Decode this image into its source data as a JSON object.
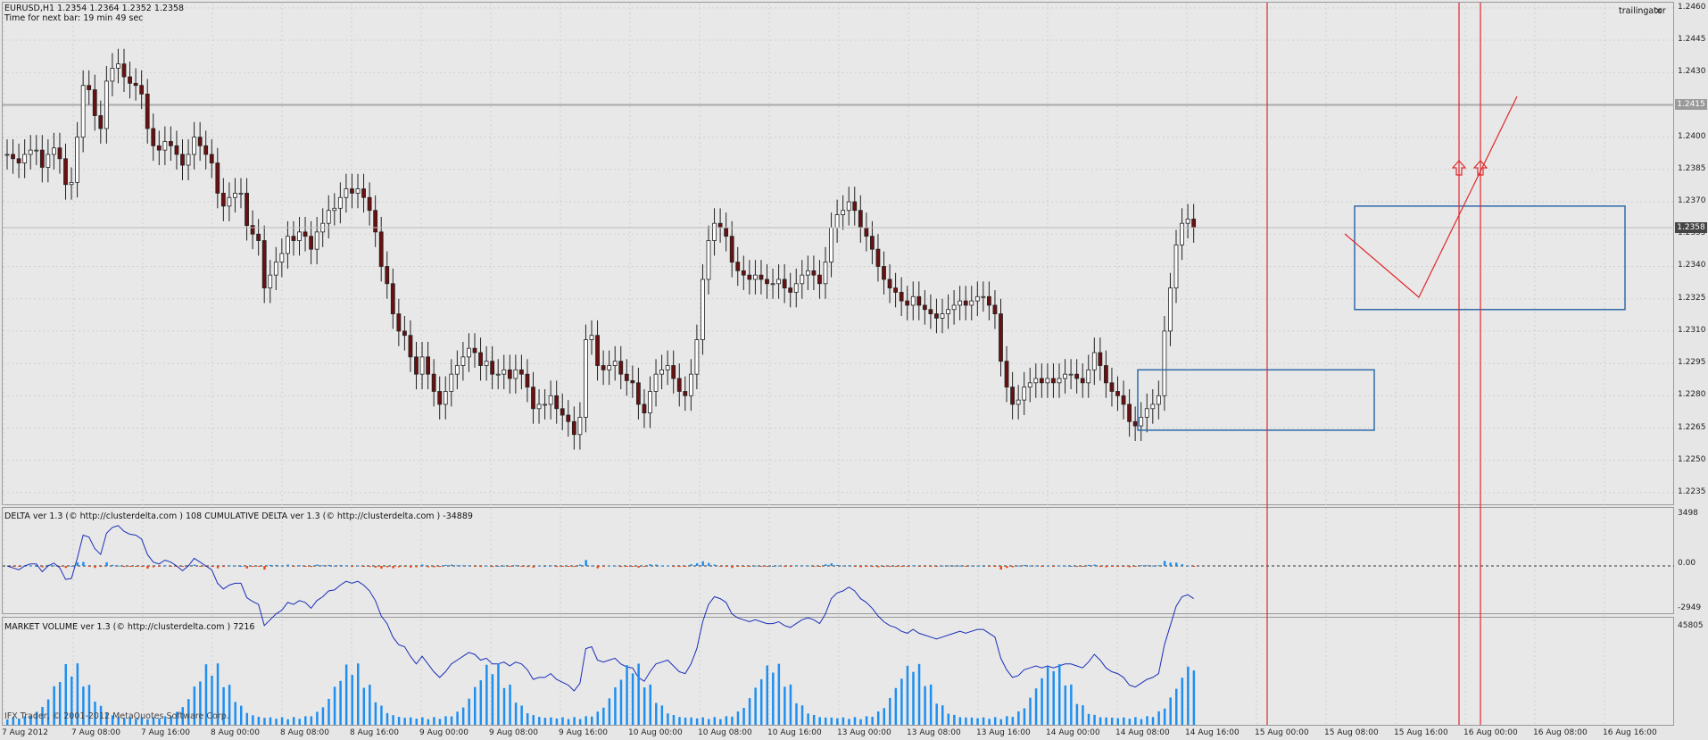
{
  "chart_header": {
    "symbol_line": "EURUSD,H1  1.2354 1.2364 1.2352 1.2358",
    "timer_line": "Time for next bar: 19 min 49 sec"
  },
  "expert": {
    "name": "trailingator",
    "close_glyph": "✕"
  },
  "price_scale": {
    "ticks": [
      "1.2460",
      "1.2445",
      "1.2430",
      "1.2415",
      "1.2400",
      "1.2385",
      "1.2370",
      "1.2355",
      "1.2340",
      "1.2325",
      "1.2310",
      "1.2295",
      "1.2280",
      "1.2265",
      "1.2250",
      "1.2235"
    ],
    "hline_label": "1.2415",
    "last_price_label": "1.2358"
  },
  "delta_panel": {
    "label": "DELTA ver 1.3 (© http://clusterdelta.com ) 108  CUMULATIVE DELTA ver 1.3 (© http://clusterdelta.com ) -34889",
    "scale": [
      "3498",
      "0.00",
      "-2949"
    ]
  },
  "volume_panel": {
    "label": "MARKET VOLUME ver 1.3 (© http://clusterdelta.com ) 7216",
    "scale": [
      "45805"
    ],
    "copyright": "IFX Trader, © 2001-2012 MetaQuotes Software Corp."
  },
  "time_axis": [
    "7 Aug 2012",
    "7 Aug 08:00",
    "7 Aug 16:00",
    "8 Aug 00:00",
    "8 Aug 08:00",
    "8 Aug 16:00",
    "9 Aug 00:00",
    "9 Aug 08:00",
    "9 Aug 16:00",
    "10 Aug 00:00",
    "10 Aug 08:00",
    "10 Aug 16:00",
    "13 Aug 00:00",
    "13 Aug 08:00",
    "13 Aug 16:00",
    "14 Aug 00:00",
    "14 Aug 08:00",
    "14 Aug 16:00",
    "15 Aug 00:00",
    "15 Aug 08:00",
    "15 Aug 16:00",
    "16 Aug 00:00",
    "16 Aug 08:00",
    "16 Aug 16:00"
  ],
  "colors": {
    "bear": "#6b1010",
    "bull": "#ffffff",
    "vline": "#e0282a",
    "box": "#2f6aa8",
    "delta_pos": "#1e8ff0",
    "delta_neg": "#f04a12",
    "cum_delta": "#1a2fb8",
    "volume": "#1e8ff0"
  },
  "chart_data": {
    "type": "candlestick",
    "symbol": "EURUSD",
    "timeframe": "H1",
    "ylim": [
      1.223,
      1.2462
    ],
    "candles_close": [
      1.2392,
      1.239,
      1.2388,
      1.2392,
      1.2394,
      1.2394,
      1.2386,
      1.2392,
      1.2395,
      1.239,
      1.2378,
      1.2379,
      1.24,
      1.2424,
      1.2422,
      1.241,
      1.2404,
      1.2426,
      1.2432,
      1.2434,
      1.2428,
      1.2425,
      1.2424,
      1.242,
      1.2404,
      1.2396,
      1.2394,
      1.2398,
      1.2396,
      1.2392,
      1.2387,
      1.2392,
      1.24,
      1.2396,
      1.2392,
      1.2388,
      1.2374,
      1.2368,
      1.2372,
      1.2374,
      1.2374,
      1.2359,
      1.2355,
      1.2352,
      1.233,
      1.2336,
      1.2342,
      1.2346,
      1.2354,
      1.2352,
      1.2356,
      1.2354,
      1.2348,
      1.2356,
      1.236,
      1.2366,
      1.2367,
      1.2372,
      1.2376,
      1.2374,
      1.2376,
      1.2372,
      1.2366,
      1.2356,
      1.234,
      1.2332,
      1.2318,
      1.231,
      1.2308,
      1.2298,
      1.229,
      1.2298,
      1.229,
      1.2282,
      1.2276,
      1.2282,
      1.229,
      1.2294,
      1.2298,
      1.2302,
      1.23,
      1.2294,
      1.2296,
      1.229,
      1.229,
      1.2292,
      1.2288,
      1.2292,
      1.229,
      1.2284,
      1.2274,
      1.2276,
      1.2276,
      1.228,
      1.2274,
      1.2271,
      1.2268,
      1.2262,
      1.227,
      1.2306,
      1.2308,
      1.2294,
      1.2292,
      1.2294,
      1.2296,
      1.229,
      1.2287,
      1.2286,
      1.2276,
      1.2272,
      1.2282,
      1.229,
      1.2292,
      1.2294,
      1.2288,
      1.2282,
      1.228,
      1.229,
      1.2306,
      1.2334,
      1.2352,
      1.236,
      1.2358,
      1.2354,
      1.2342,
      1.2338,
      1.2336,
      1.2334,
      1.2336,
      1.2334,
      1.2332,
      1.2332,
      1.2334,
      1.233,
      1.2328,
      1.2332,
      1.2336,
      1.2338,
      1.2336,
      1.2332,
      1.2342,
      1.2358,
      1.2364,
      1.2366,
      1.237,
      1.2366,
      1.2358,
      1.2354,
      1.2348,
      1.234,
      1.2334,
      1.233,
      1.2328,
      1.2324,
      1.2322,
      1.2326,
      1.2322,
      1.232,
      1.2318,
      1.2316,
      1.2318,
      1.232,
      1.2322,
      1.2324,
      1.2322,
      1.2324,
      1.2326,
      1.2326,
      1.2322,
      1.2318,
      1.2296,
      1.2284,
      1.2276,
      1.2278,
      1.2284,
      1.2286,
      1.2288,
      1.2286,
      1.2288,
      1.2286,
      1.2288,
      1.229,
      1.229,
      1.2288,
      1.2286,
      1.2292,
      1.23,
      1.2294,
      1.2286,
      1.2282,
      1.228,
      1.2276,
      1.2268,
      1.2266,
      1.227,
      1.2274,
      1.2276,
      1.228,
      1.231,
      1.233,
      1.235,
      1.236,
      1.2362,
      1.2358
    ],
    "boxes": [
      {
        "price_top": 1.2292,
        "price_bottom": 1.2264
      },
      {
        "price_top": 1.2368,
        "price_bottom": 1.232
      }
    ],
    "horizontal_line": 1.2415,
    "delta_ylim": [
      -2949,
      3498
    ],
    "volume_ylim": [
      0,
      45805
    ]
  }
}
